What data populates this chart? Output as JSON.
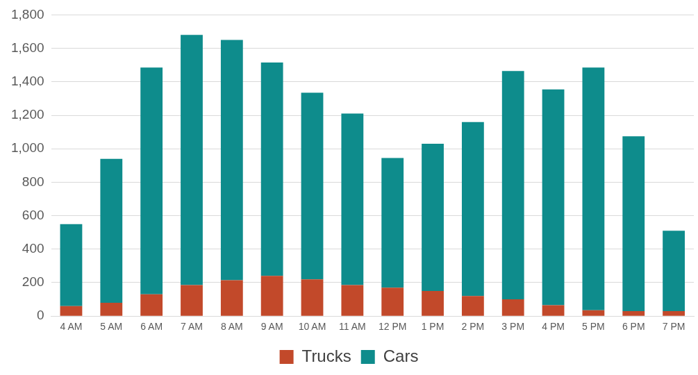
{
  "chart_data": {
    "type": "bar",
    "stacked": true,
    "categories": [
      "4 AM",
      "5 AM",
      "6 AM",
      "7 AM",
      "8 AM",
      "9 AM",
      "10 AM",
      "11 AM",
      "12 PM",
      "1 PM",
      "2 PM",
      "3 PM",
      "4 PM",
      "5 PM",
      "6 PM",
      "7 PM"
    ],
    "series": [
      {
        "name": "Trucks",
        "color": "#c2492a",
        "values": [
          60,
          80,
          130,
          185,
          215,
          240,
          220,
          185,
          170,
          150,
          120,
          100,
          65,
          35,
          30,
          30
        ]
      },
      {
        "name": "Cars",
        "color": "#0e8c8c",
        "values": [
          490,
          860,
          1355,
          1495,
          1435,
          1275,
          1115,
          1025,
          775,
          880,
          1040,
          1365,
          1290,
          1450,
          1045,
          480
        ]
      }
    ],
    "ylim": [
      0,
      1800
    ],
    "yticks": [
      0,
      200,
      400,
      600,
      800,
      {
        "value": 1000,
        "label": "1,000"
      },
      {
        "value": 1200,
        "label": "1,200"
      },
      {
        "value": 1400,
        "label": "1,400"
      },
      {
        "value": 1600,
        "label": "1,600"
      },
      {
        "value": 1800,
        "label": "1,800"
      }
    ],
    "grid": "y",
    "legend": "bottom"
  }
}
